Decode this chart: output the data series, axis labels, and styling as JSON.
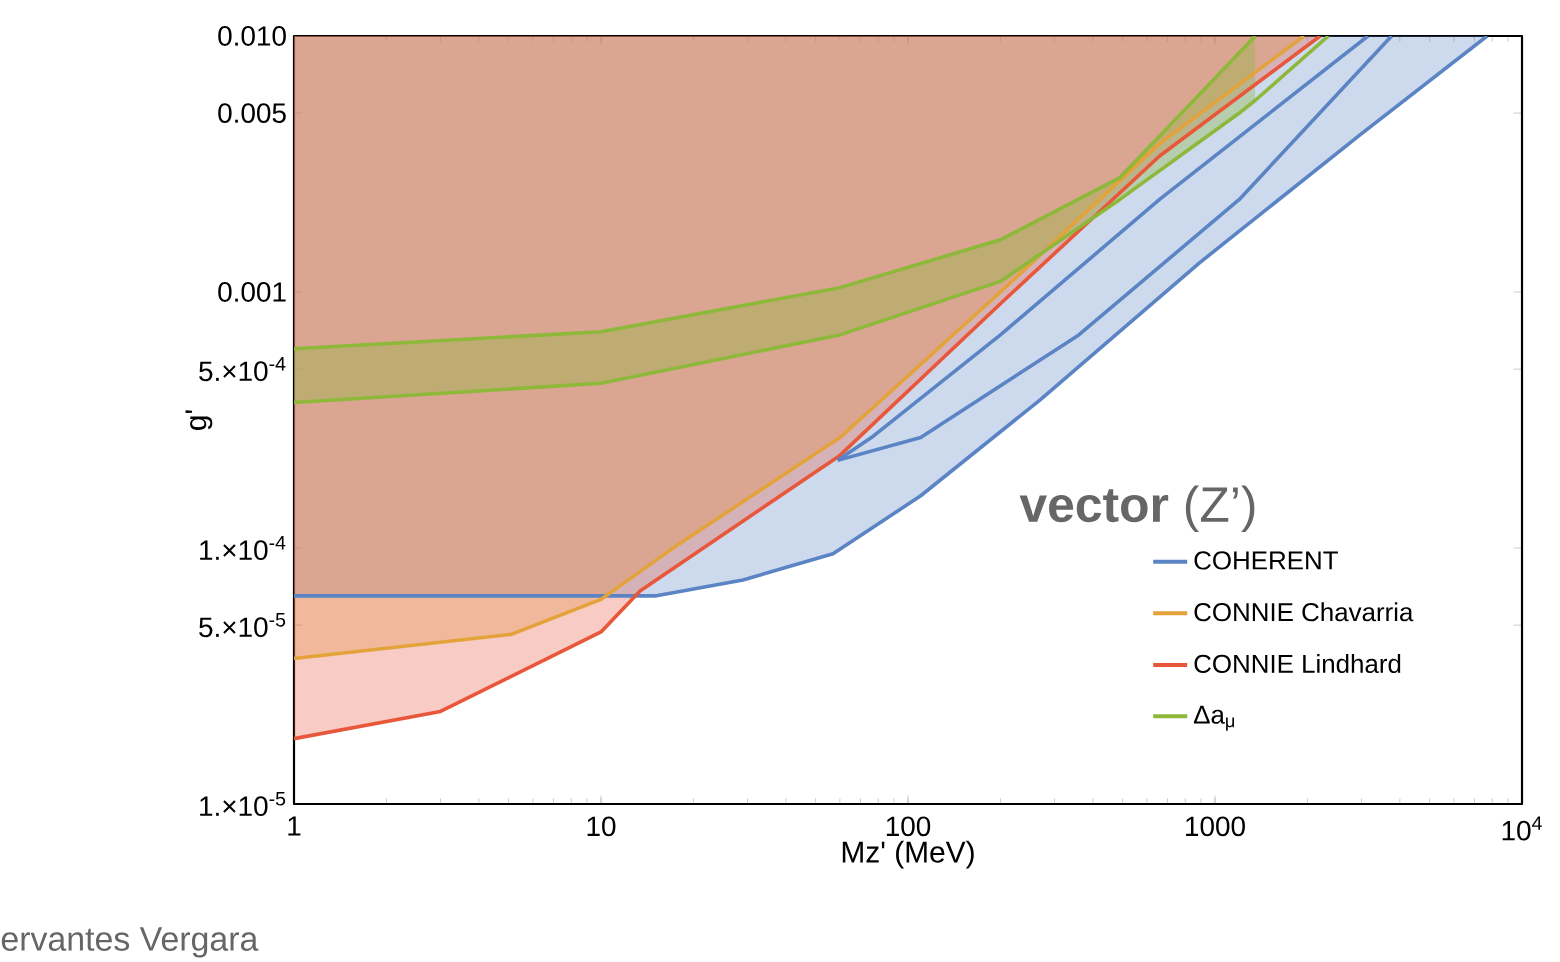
{
  "chart_data": {
    "type": "area",
    "xlabel": "Mz' (MeV)",
    "ylabel": "g'",
    "legend_title": "**vector** (Z’)",
    "log": "xy",
    "legend": "bottom right",
    "xlim": [
      1,
      10000
    ],
    "ylim": [
      1e-05,
      0.01
    ],
    "xticks": [
      1,
      10,
      100,
      1000,
      {
        "value": 10000,
        "label": "10$^{4}$"
      }
    ],
    "yticks": [
      {
        "value": 1e-05,
        "label": "1.×10$^{-5}$"
      },
      {
        "value": 5e-05,
        "label": "5.×10$^{-5}$"
      },
      {
        "value": 0.0001,
        "label": "1.×10$^{-4}$"
      },
      {
        "value": 0.0005,
        "label": "5.×10$^{-4}$"
      },
      0.001,
      0.005,
      {
        "value": 0.01,
        "label": "0.010"
      }
    ],
    "annotations": [
      "ervantes Vergara"
    ],
    "series": [
      {
        "name": "COHERENT",
        "color": "#5b84c4",
        "x": [
          1,
          15,
          29,
          57,
          110,
          270,
          890,
          2960,
          7700
        ],
        "values": [
          6.5e-05,
          6.5e-05,
          7.5e-05,
          9.5e-05,
          0.00016,
          0.00038,
          0.0013,
          0.0041,
          0.01
        ]
      },
      {
        "name": "CONNIE Chavarria",
        "color": "#e3a33a",
        "x": [
          1,
          5.1,
          10,
          18,
          60,
          200,
          660,
          1950
        ],
        "values": [
          3.7e-05,
          4.6e-05,
          6.3e-05,
          0.000104,
          0.00027,
          0.001,
          0.0038,
          0.01
        ]
      },
      {
        "name": "CONNIE Lindhard",
        "color": "#e8573a",
        "x": [
          1,
          3,
          10,
          13.4,
          60,
          200,
          660,
          2200
        ],
        "values": [
          1.8e-05,
          2.3e-05,
          4.7e-05,
          6.8e-05,
          0.00023,
          0.0009,
          0.0034,
          0.01
        ]
      },
      {
        "name": "Δa$_{μ}$",
        "type": "line",
        "color": "#8db83a",
        "x": [
          1,
          10,
          60,
          200,
          490,
          1200,
          1350
        ],
        "values": [
          0.0006,
          0.0007,
          0.00104,
          0.0016,
          0.0028,
          0.0086,
          0.01
        ],
        "upper": [
          0.0006,
          0.0007,
          0.00104,
          0.0016,
          0.0028,
          0.0086,
          0.01
        ],
        "lower": [
          0.00037,
          0.00044,
          0.00068,
          0.0011,
          0.0023,
          0.005,
          0.0056
        ]
      },
      {
        "type": "line",
        "color": "#8db83a",
        "x": [
          1,
          10,
          60,
          200,
          490,
          1200,
          1350,
          2340
        ],
        "values": [
          0.00037,
          0.00044,
          0.00068,
          0.0011,
          0.0023,
          0.005,
          0.0056,
          0.01
        ]
      },
      {
        "type": "line",
        "color": "#5b84c4",
        "x": [
          59,
          76,
          200,
          660,
          3150
        ],
        "values": [
          0.00022,
          0.00027,
          0.00068,
          0.0023,
          0.01
        ]
      },
      {
        "type": "line",
        "color": "#5b84c4",
        "x": [
          59,
          110,
          360,
          1200,
          3760
        ],
        "values": [
          0.00022,
          0.00027,
          0.00068,
          0.0023,
          0.01
        ]
      }
    ]
  }
}
